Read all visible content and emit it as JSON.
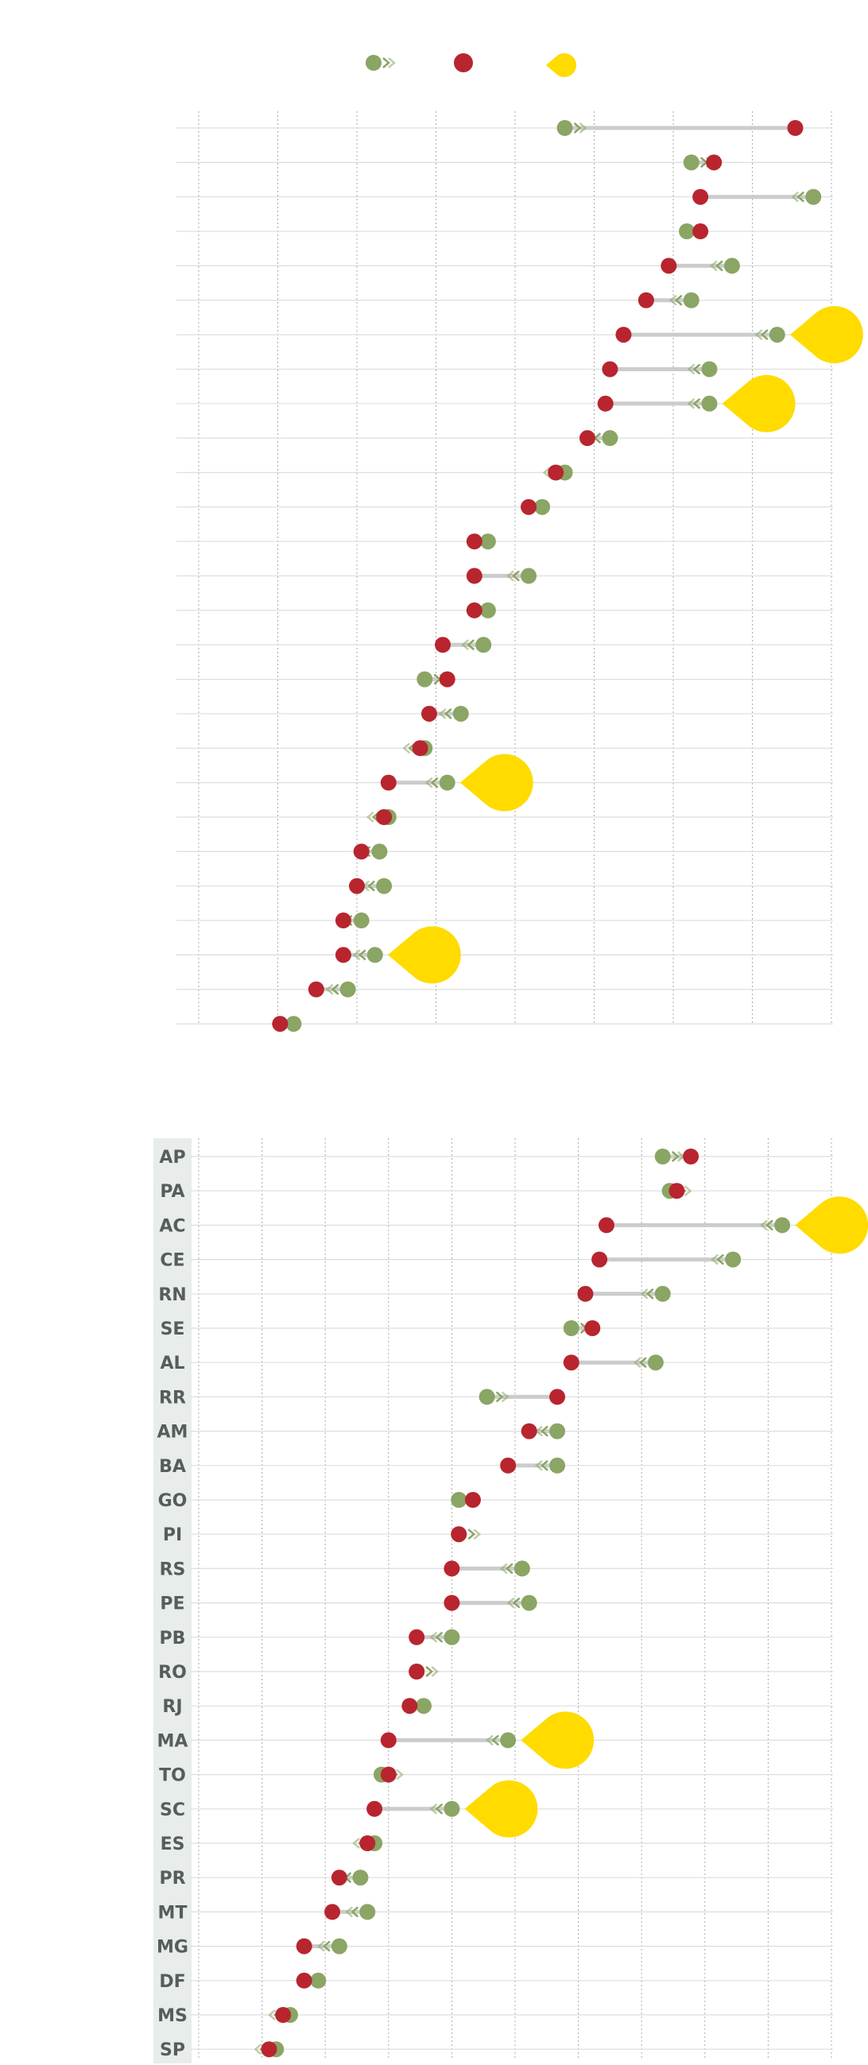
{
  "colors": {
    "green": "#8aa564",
    "red": "#b8252f",
    "yellow": "#ffdb00",
    "connector": "#cccccc",
    "hgrid": "#dddddd",
    "vgrid": "#aaaaaa",
    "label_bg": "#e8ecea",
    "label_text": "#555e5c"
  },
  "legend": {
    "items": [
      {
        "key": "green",
        "icon": "green-dot-arrow-icon"
      },
      {
        "key": "red",
        "icon": "red-dot-icon"
      },
      {
        "key": "yellow",
        "icon": "yellow-teardrop-icon"
      }
    ]
  },
  "chart_data": [
    {
      "type": "dumbbell",
      "labels_visible": false,
      "xlim": [
        0,
        14
      ],
      "grid": true,
      "rows": [
        {
          "label": "",
          "green": 8.1,
          "red": 13.2,
          "flag": false
        },
        {
          "label": "",
          "green": 10.9,
          "red": 11.4,
          "flag": false
        },
        {
          "label": "",
          "green": 13.6,
          "red": 11.1,
          "flag": false
        },
        {
          "label": "",
          "green": 10.8,
          "red": 11.1,
          "flag": false
        },
        {
          "label": "",
          "green": 11.8,
          "red": 10.4,
          "flag": false
        },
        {
          "label": "",
          "green": 10.9,
          "red": 9.9,
          "flag": false
        },
        {
          "label": "",
          "green": 12.8,
          "red": 9.4,
          "flag": true
        },
        {
          "label": "",
          "green": 11.3,
          "red": 9.1,
          "flag": false
        },
        {
          "label": "",
          "green": 11.3,
          "red": 9.0,
          "flag": true
        },
        {
          "label": "",
          "green": 9.1,
          "red": 8.6,
          "flag": false
        },
        {
          "label": "",
          "green": 8.1,
          "red": 7.9,
          "flag": false
        },
        {
          "label": "",
          "green": 7.6,
          "red": 7.3,
          "flag": false
        },
        {
          "label": "",
          "green": 6.4,
          "red": 6.1,
          "flag": false
        },
        {
          "label": "",
          "green": 7.3,
          "red": 6.1,
          "flag": false
        },
        {
          "label": "",
          "green": 6.4,
          "red": 6.1,
          "flag": false
        },
        {
          "label": "",
          "green": 6.3,
          "red": 5.4,
          "flag": false
        },
        {
          "label": "",
          "green": 5.0,
          "red": 5.5,
          "flag": false
        },
        {
          "label": "",
          "green": 5.8,
          "red": 5.1,
          "flag": false
        },
        {
          "label": "",
          "green": 5.0,
          "red": 4.9,
          "flag": false
        },
        {
          "label": "",
          "green": 5.5,
          "red": 4.2,
          "flag": true
        },
        {
          "label": "",
          "green": 4.2,
          "red": 4.1,
          "flag": false
        },
        {
          "label": "",
          "green": 4.0,
          "red": 3.6,
          "flag": false
        },
        {
          "label": "",
          "green": 4.1,
          "red": 3.5,
          "flag": false
        },
        {
          "label": "",
          "green": 3.6,
          "red": 3.2,
          "flag": false
        },
        {
          "label": "",
          "green": 3.9,
          "red": 3.2,
          "flag": true
        },
        {
          "label": "",
          "green": 3.3,
          "red": 2.6,
          "flag": false
        },
        {
          "label": "",
          "green": 2.1,
          "red": 1.8,
          "flag": false
        }
      ]
    },
    {
      "type": "dumbbell",
      "labels_visible": true,
      "xlim": [
        0,
        9
      ],
      "grid": true,
      "rows": [
        {
          "label": "AP",
          "green": 6.6,
          "red": 7.0,
          "flag": false
        },
        {
          "label": "PA",
          "green": 6.7,
          "red": 6.8,
          "flag": false
        },
        {
          "label": "AC",
          "green": 8.3,
          "red": 5.8,
          "flag": true
        },
        {
          "label": "CE",
          "green": 7.6,
          "red": 5.7,
          "flag": false
        },
        {
          "label": "RN",
          "green": 6.6,
          "red": 5.5,
          "flag": false
        },
        {
          "label": "SE",
          "green": 5.3,
          "red": 5.6,
          "flag": false
        },
        {
          "label": "AL",
          "green": 6.5,
          "red": 5.3,
          "flag": false
        },
        {
          "label": "RR",
          "green": 4.1,
          "red": 5.1,
          "flag": false
        },
        {
          "label": "AM",
          "green": 5.1,
          "red": 4.7,
          "flag": false
        },
        {
          "label": "BA",
          "green": 5.1,
          "red": 4.4,
          "flag": false
        },
        {
          "label": "GO",
          "green": 3.7,
          "red": 3.9,
          "flag": false
        },
        {
          "label": "PI",
          "green": 3.7,
          "red": 3.7,
          "flag": false
        },
        {
          "label": "RS",
          "green": 4.6,
          "red": 3.6,
          "flag": false
        },
        {
          "label": "PE",
          "green": 4.7,
          "red": 3.6,
          "flag": false
        },
        {
          "label": "PB",
          "green": 3.6,
          "red": 3.1,
          "flag": false
        },
        {
          "label": "RO",
          "green": 3.1,
          "red": 3.1,
          "flag": false
        },
        {
          "label": "RJ",
          "green": 3.2,
          "red": 3.0,
          "flag": false
        },
        {
          "label": "MA",
          "green": 4.4,
          "red": 2.7,
          "flag": true
        },
        {
          "label": "TO",
          "green": 2.6,
          "red": 2.7,
          "flag": false
        },
        {
          "label": "SC",
          "green": 3.6,
          "red": 2.5,
          "flag": true
        },
        {
          "label": "ES",
          "green": 2.5,
          "red": 2.4,
          "flag": false
        },
        {
          "label": "PR",
          "green": 2.3,
          "red": 2.0,
          "flag": false
        },
        {
          "label": "MT",
          "green": 2.4,
          "red": 1.9,
          "flag": false
        },
        {
          "label": "MG",
          "green": 2.0,
          "red": 1.5,
          "flag": false
        },
        {
          "label": "DF",
          "green": 1.7,
          "red": 1.5,
          "flag": false
        },
        {
          "label": "MS",
          "green": 1.3,
          "red": 1.2,
          "flag": false
        },
        {
          "label": "SP",
          "green": 1.1,
          "red": 1.0,
          "flag": false
        }
      ]
    }
  ]
}
